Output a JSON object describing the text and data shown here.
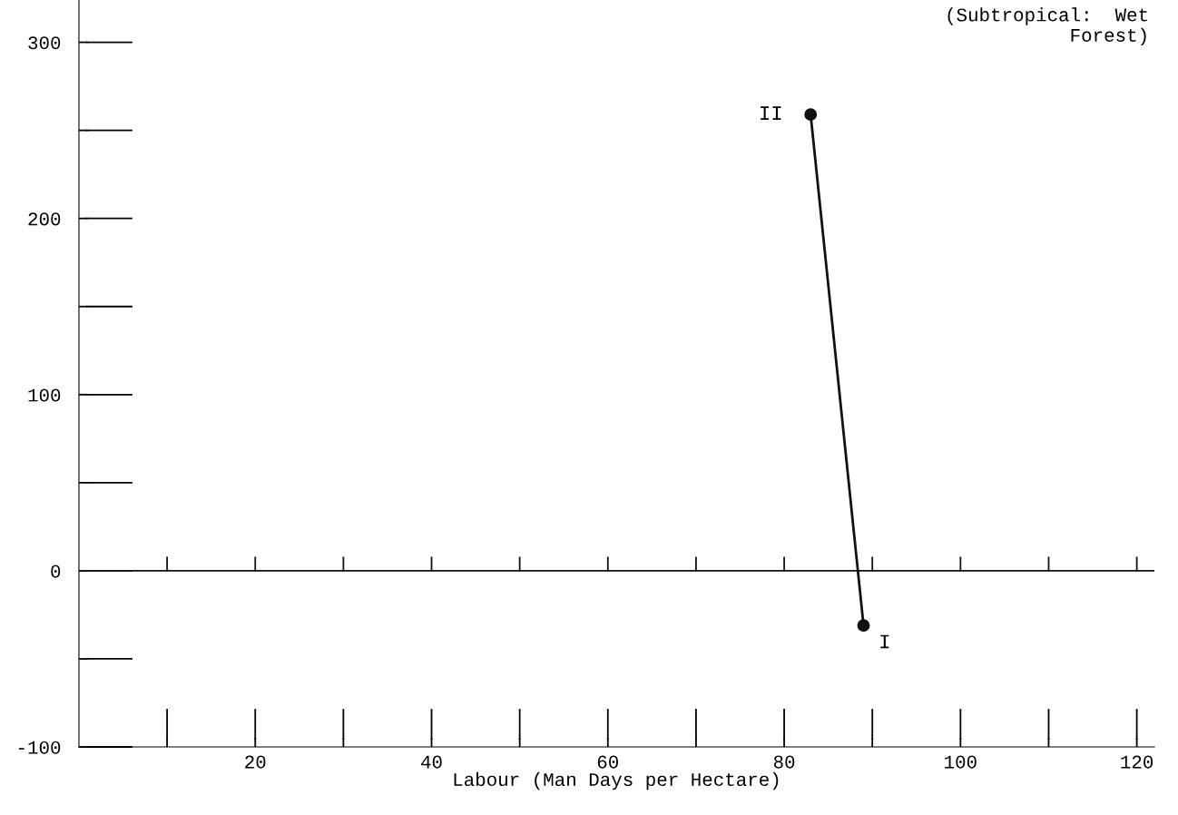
{
  "chart_data": {
    "type": "line",
    "xlabel": "Labour (Man Days per Hectare)",
    "x": [
      83,
      89
    ],
    "series": [
      {
        "color": "#111111",
        "values": [
          259,
          -31
        ]
      }
    ],
    "marker": "circle",
    "line_style": "solid",
    "grid": false,
    "legend": false,
    "xlim": [
      0,
      122
    ],
    "ylim": [
      -100,
      324
    ],
    "xticks": [
      {
        "value": 10,
        "label": null
      },
      20,
      {
        "value": 30,
        "label": null
      },
      40,
      {
        "value": 50,
        "label": null
      },
      60,
      {
        "value": 70,
        "label": null
      },
      80,
      {
        "value": 90,
        "label": null
      },
      100,
      {
        "value": 110,
        "label": null
      },
      120
    ],
    "yticks": [
      -100,
      {
        "value": -50,
        "label": null
      },
      0,
      {
        "value": 50,
        "label": null
      },
      100,
      {
        "value": 150,
        "label": null
      },
      200,
      {
        "value": 250,
        "label": null
      },
      300
    ],
    "ref_lines": [
      {
        "axis": "y",
        "value": 0,
        "color": "#111111"
      }
    ],
    "annotations": [
      {
        "text": "II",
        "x": 83,
        "y": 259
      },
      {
        "text": "I",
        "x": 89,
        "y": -31
      },
      "(Subtropical:  Wet\n Forest)"
    ]
  }
}
